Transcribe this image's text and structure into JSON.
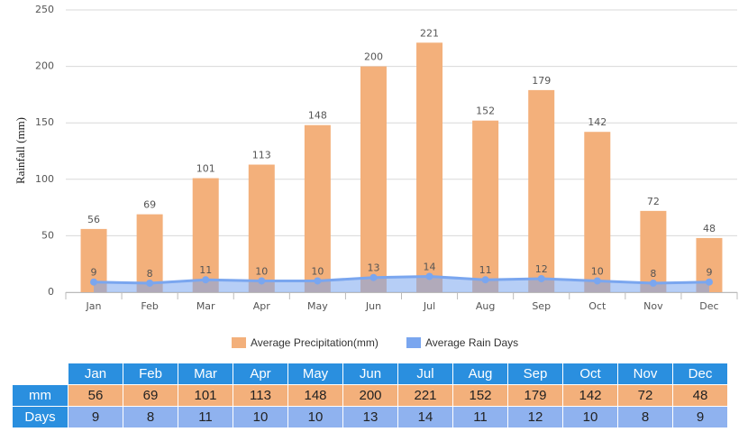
{
  "chart_data": {
    "type": "bar",
    "y_label": "Rainfall (mm)",
    "categories": [
      "Jan",
      "Feb",
      "Mar",
      "Apr",
      "May",
      "Jun",
      "Jul",
      "Aug",
      "Sep",
      "Oct",
      "Nov",
      "Dec"
    ],
    "series": [
      {
        "name": "Average Precipitation(mm)",
        "type": "bar",
        "color": "#f3b07b",
        "values": [
          56,
          69,
          101,
          113,
          148,
          200,
          221,
          152,
          179,
          142,
          72,
          48
        ]
      },
      {
        "name": "Average Rain Days",
        "type": "area",
        "color": "#7aa6ef",
        "values": [
          9,
          8,
          11,
          10,
          10,
          13,
          14,
          11,
          12,
          10,
          8,
          9
        ]
      }
    ],
    "ylim": [
      0,
      250
    ],
    "yticks": [
      0,
      50,
      100,
      150,
      200,
      250
    ],
    "grid": true,
    "legend": "bottom"
  },
  "table": {
    "row_labels": [
      "mm",
      "Days"
    ]
  }
}
